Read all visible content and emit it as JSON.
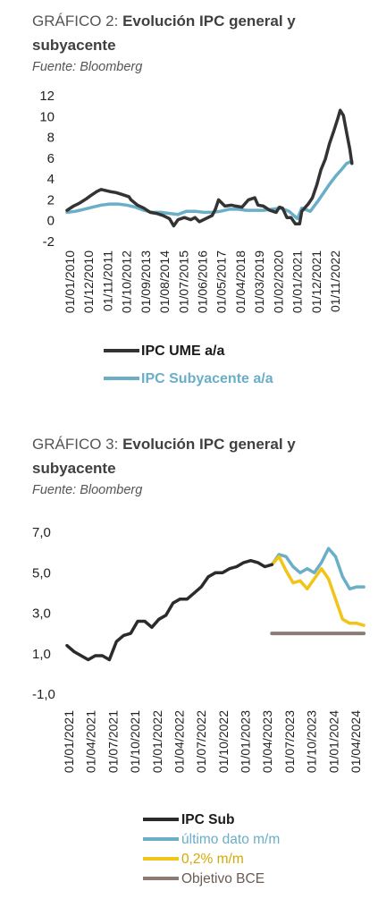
{
  "chart_data": [
    {
      "type": "line",
      "title_prefix": "GRÁFICO 2: ",
      "title": "Evolución IPC general y subyacente",
      "source": "Fuente: Bloomberg",
      "ylim": [
        -2,
        12
      ],
      "yticks": [
        "-2",
        "0",
        "2",
        "4",
        "6",
        "8",
        "10",
        "12"
      ],
      "x_tick_labels": [
        "01/01/2010",
        "01/12/2010",
        "01/11/2011",
        "01/10/2012",
        "01/09/2013",
        "01/08/2014",
        "01/07/2015",
        "01/06/2016",
        "01/05/2017",
        "01/04/2018",
        "01/03/2019",
        "01/02/2020",
        "01/01/2021",
        "01/12/2021",
        "01/11/2022"
      ],
      "x_range_years": [
        2010.0,
        2023.4
      ],
      "grid": false,
      "legend": "bottom",
      "series": [
        {
          "name": "IPC UME a/a",
          "color": "#333333",
          "points": [
            [
              2010.0,
              1.0
            ],
            [
              2010.3,
              1.4
            ],
            [
              2010.6,
              1.7
            ],
            [
              2010.9,
              2.1
            ],
            [
              2011.1,
              2.4
            ],
            [
              2011.4,
              2.8
            ],
            [
              2011.6,
              3.0
            ],
            [
              2011.8,
              2.9
            ],
            [
              2012.0,
              2.8
            ],
            [
              2012.3,
              2.7
            ],
            [
              2012.6,
              2.5
            ],
            [
              2012.9,
              2.3
            ],
            [
              2013.0,
              2.0
            ],
            [
              2013.3,
              1.5
            ],
            [
              2013.6,
              1.2
            ],
            [
              2013.9,
              0.8
            ],
            [
              2014.2,
              0.7
            ],
            [
              2014.5,
              0.5
            ],
            [
              2014.8,
              0.2
            ],
            [
              2015.0,
              -0.5
            ],
            [
              2015.2,
              0.1
            ],
            [
              2015.5,
              0.3
            ],
            [
              2015.8,
              0.1
            ],
            [
              2016.0,
              0.3
            ],
            [
              2016.2,
              -0.1
            ],
            [
              2016.5,
              0.2
            ],
            [
              2016.8,
              0.5
            ],
            [
              2016.95,
              1.1
            ],
            [
              2017.1,
              2.0
            ],
            [
              2017.4,
              1.4
            ],
            [
              2017.7,
              1.5
            ],
            [
              2017.9,
              1.4
            ],
            [
              2018.2,
              1.3
            ],
            [
              2018.5,
              2.0
            ],
            [
              2018.8,
              2.2
            ],
            [
              2018.95,
              1.5
            ],
            [
              2019.2,
              1.4
            ],
            [
              2019.5,
              1.0
            ],
            [
              2019.8,
              0.8
            ],
            [
              2019.95,
              1.3
            ],
            [
              2020.1,
              1.2
            ],
            [
              2020.3,
              0.3
            ],
            [
              2020.5,
              0.3
            ],
            [
              2020.7,
              -0.3
            ],
            [
              2020.9,
              -0.3
            ],
            [
              2021.0,
              0.9
            ],
            [
              2021.3,
              1.6
            ],
            [
              2021.5,
              2.2
            ],
            [
              2021.7,
              3.4
            ],
            [
              2021.9,
              4.9
            ],
            [
              2022.1,
              5.9
            ],
            [
              2022.3,
              7.4
            ],
            [
              2022.5,
              8.6
            ],
            [
              2022.7,
              9.9
            ],
            [
              2022.8,
              10.6
            ],
            [
              2022.95,
              10.1
            ],
            [
              2023.1,
              8.5
            ],
            [
              2023.25,
              6.9
            ],
            [
              2023.35,
              5.5
            ]
          ]
        },
        {
          "name": "IPC Subyacente a/a",
          "color": "#6aaec8",
          "points": [
            [
              2010.0,
              0.8
            ],
            [
              2010.4,
              0.9
            ],
            [
              2010.8,
              1.1
            ],
            [
              2011.2,
              1.3
            ],
            [
              2011.6,
              1.5
            ],
            [
              2012.0,
              1.6
            ],
            [
              2012.4,
              1.6
            ],
            [
              2012.8,
              1.5
            ],
            [
              2013.2,
              1.3
            ],
            [
              2013.6,
              1.0
            ],
            [
              2014.0,
              0.8
            ],
            [
              2014.4,
              0.8
            ],
            [
              2014.8,
              0.7
            ],
            [
              2015.2,
              0.6
            ],
            [
              2015.6,
              0.9
            ],
            [
              2016.0,
              0.9
            ],
            [
              2016.4,
              0.8
            ],
            [
              2016.8,
              0.8
            ],
            [
              2017.2,
              0.9
            ],
            [
              2017.6,
              1.1
            ],
            [
              2018.0,
              1.1
            ],
            [
              2018.4,
              1.0
            ],
            [
              2018.8,
              1.0
            ],
            [
              2019.2,
              1.0
            ],
            [
              2019.6,
              1.1
            ],
            [
              2020.0,
              1.2
            ],
            [
              2020.4,
              0.9
            ],
            [
              2020.8,
              0.2
            ],
            [
              2021.0,
              1.2
            ],
            [
              2021.4,
              0.9
            ],
            [
              2021.8,
              2.0
            ],
            [
              2022.0,
              2.6
            ],
            [
              2022.3,
              3.5
            ],
            [
              2022.6,
              4.3
            ],
            [
              2022.9,
              5.0
            ],
            [
              2023.1,
              5.5
            ],
            [
              2023.35,
              5.7
            ]
          ]
        }
      ]
    },
    {
      "type": "line",
      "title_prefix": "GRÁFICO 3: ",
      "title": "Evolución IPC general y subyacente",
      "source": "Fuente: Bloomberg",
      "ylim": [
        -1.0,
        7.0
      ],
      "yticks": [
        "-1,0",
        "1,0",
        "3,0",
        "5,0",
        "7,0"
      ],
      "x_tick_labels": [
        "01/01/2021",
        "01/04/2021",
        "01/07/2021",
        "01/10/2021",
        "01/01/2022",
        "01/04/2022",
        "01/07/2022",
        "01/10/2022",
        "01/01/2023",
        "01/04/2023",
        "01/07/2023",
        "01/10/2023",
        "01/01/2024",
        "01/04/2024"
      ],
      "x_range_months": [
        0,
        43
      ],
      "grid": false,
      "legend": "bottom",
      "series": [
        {
          "name": "IPC Sub",
          "color": "#2b2b2b",
          "points": [
            [
              0,
              1.4
            ],
            [
              1,
              1.1
            ],
            [
              2,
              0.9
            ],
            [
              3,
              0.7
            ],
            [
              4,
              0.9
            ],
            [
              5,
              0.9
            ],
            [
              6,
              0.7
            ],
            [
              7,
              1.6
            ],
            [
              8,
              1.9
            ],
            [
              9,
              2.0
            ],
            [
              10,
              2.6
            ],
            [
              11,
              2.6
            ],
            [
              12,
              2.3
            ],
            [
              13,
              2.7
            ],
            [
              14,
              2.9
            ],
            [
              15,
              3.5
            ],
            [
              16,
              3.7
            ],
            [
              17,
              3.7
            ],
            [
              18,
              4.0
            ],
            [
              19,
              4.3
            ],
            [
              20,
              4.8
            ],
            [
              21,
              5.0
            ],
            [
              22,
              5.0
            ],
            [
              23,
              5.2
            ],
            [
              24,
              5.3
            ],
            [
              25,
              5.5
            ],
            [
              26,
              5.6
            ],
            [
              27,
              5.5
            ],
            [
              28,
              5.3
            ],
            [
              29,
              5.4
            ]
          ]
        },
        {
          "name": "último dato m/m",
          "color": "#6aaec8",
          "points": [
            [
              29,
              5.4
            ],
            [
              30,
              5.9
            ],
            [
              31,
              5.8
            ],
            [
              32,
              5.3
            ],
            [
              33,
              5.0
            ],
            [
              34,
              5.2
            ],
            [
              35,
              5.0
            ],
            [
              36,
              5.5
            ],
            [
              37,
              6.2
            ],
            [
              38,
              5.8
            ],
            [
              39,
              4.8
            ],
            [
              40,
              4.2
            ],
            [
              41,
              4.3
            ],
            [
              42,
              4.3
            ]
          ]
        },
        {
          "name": "0,2% m/m",
          "color": "#f2c418",
          "points": [
            [
              29,
              5.4
            ],
            [
              30,
              5.8
            ],
            [
              31,
              5.1
            ],
            [
              32,
              4.5
            ],
            [
              33,
              4.6
            ],
            [
              34,
              4.2
            ],
            [
              35,
              4.7
            ],
            [
              36,
              5.2
            ],
            [
              37,
              4.7
            ],
            [
              38,
              3.7
            ],
            [
              39,
              2.7
            ],
            [
              40,
              2.5
            ],
            [
              41,
              2.5
            ],
            [
              42,
              2.4
            ]
          ]
        },
        {
          "name": "Objetivo BCE",
          "color": "#8c7b75",
          "points": [
            [
              29,
              2.0
            ],
            [
              42,
              2.0
            ]
          ]
        }
      ]
    }
  ]
}
